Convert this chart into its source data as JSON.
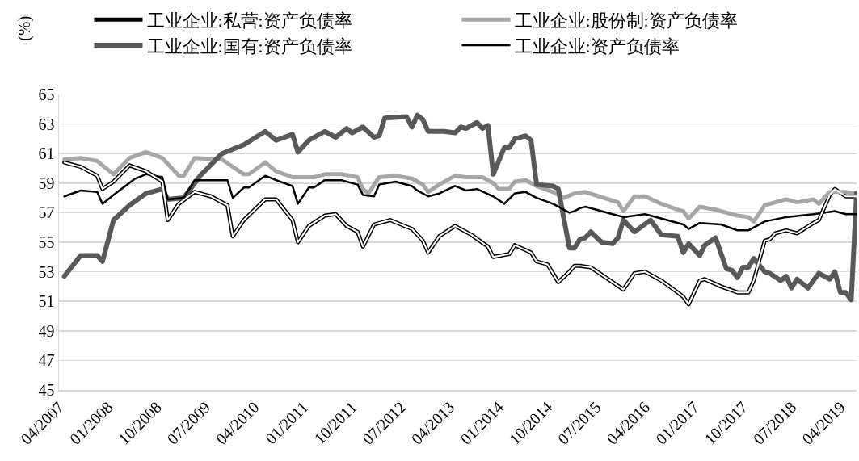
{
  "chart_data": {
    "type": "line",
    "ylabel": "(%)",
    "legend": "top",
    "grid": "y",
    "line_style": "solid",
    "marker": "none",
    "xlim": [
      "2007-04",
      "2019-07"
    ],
    "ylim": [
      45,
      65
    ],
    "yticks": [
      45,
      47,
      49,
      51,
      53,
      55,
      57,
      59,
      61,
      63,
      65
    ],
    "xticks": [
      {
        "value": "2007-04",
        "label": "04/2007"
      },
      {
        "value": "2008-01",
        "label": "01/2008"
      },
      {
        "value": "2008-10",
        "label": "10/2008"
      },
      {
        "value": "2009-07",
        "label": "07/2009"
      },
      {
        "value": "2010-04",
        "label": "04/2010"
      },
      {
        "value": "2011-01",
        "label": "01/2011"
      },
      {
        "value": "2011-10",
        "label": "10/2011"
      },
      {
        "value": "2012-07",
        "label": "07/2012"
      },
      {
        "value": "2013-04",
        "label": "04/2013"
      },
      {
        "value": "2014-01",
        "label": "01/2014"
      },
      {
        "value": "2014-10",
        "label": "10/2014"
      },
      {
        "value": "2015-07",
        "label": "07/2015"
      },
      {
        "value": "2016-04",
        "label": "04/2016"
      },
      {
        "value": "2017-01",
        "label": "01/2017"
      },
      {
        "value": "2017-10",
        "label": "10/2017"
      },
      {
        "value": "2018-07",
        "label": "07/2018"
      },
      {
        "value": "2019-04",
        "label": "04/2019"
      }
    ],
    "series": [
      {
        "name": "工业企业:私营:资产负债率",
        "color": "#000000",
        "x": [
          "2007-05",
          "2007-08",
          "2007-11",
          "2007-12",
          "2008-02",
          "2008-05",
          "2008-08",
          "2008-11",
          "2008-12",
          "2009-02",
          "2009-05",
          "2009-08",
          "2009-11",
          "2009-12",
          "2010-02",
          "2010-06",
          "2010-08",
          "2010-11",
          "2010-12",
          "2011-02",
          "2011-05",
          "2011-07",
          "2011-09",
          "2011-11",
          "2011-12",
          "2012-02",
          "2012-05",
          "2012-09",
          "2012-11",
          "2012-12",
          "2013-02",
          "2013-05",
          "2013-08",
          "2013-11",
          "2013-12",
          "2014-03",
          "2014-04",
          "2014-07",
          "2014-08",
          "2014-10",
          "2014-12",
          "2015-02",
          "2015-03",
          "2015-04",
          "2015-06",
          "2015-12",
          "2016-02",
          "2016-04",
          "2016-07",
          "2016-10",
          "2016-11",
          "2016-12",
          "2017-02",
          "2017-03",
          "2017-06",
          "2017-09",
          "2017-11",
          "2017-12",
          "2018-02",
          "2018-03",
          "2018-04",
          "2018-06",
          "2018-08",
          "2018-11",
          "2018-12",
          "2019-02",
          "2019-03",
          "2019-05",
          "2019-07"
        ],
        "values": [
          60.4,
          60.1,
          59.5,
          58.6,
          59.1,
          60.2,
          59.8,
          59.1,
          56.5,
          57.6,
          58.4,
          58.1,
          57.5,
          55.4,
          56.5,
          57.9,
          57.9,
          56.5,
          55.0,
          56.1,
          56.8,
          56.9,
          56.1,
          55.7,
          54.7,
          56.2,
          56.5,
          55.9,
          55.1,
          54.3,
          55.4,
          56.1,
          55.5,
          54.7,
          54.0,
          54.2,
          54.8,
          54.3,
          53.7,
          53.5,
          52.3,
          53.0,
          53.4,
          53.4,
          53.3,
          51.8,
          52.9,
          53.0,
          52.4,
          51.6,
          51.3,
          50.8,
          52.4,
          52.5,
          52.0,
          51.6,
          51.6,
          52.4,
          55.1,
          55.2,
          55.6,
          55.8,
          55.6,
          56.3,
          56.5,
          58.2,
          58.6,
          58.1,
          58.1
        ]
      },
      {
        "name": "工业企业:股份制:资产负债率",
        "color": "#a6a6a6",
        "x": [
          "2007-05",
          "2007-08",
          "2007-11",
          "2008-02",
          "2008-05",
          "2008-08",
          "2008-11",
          "2009-02",
          "2009-03",
          "2009-05",
          "2009-10",
          "2010-02",
          "2010-03",
          "2010-06",
          "2010-08",
          "2010-11",
          "2011-03",
          "2011-05",
          "2011-08",
          "2011-11",
          "2011-12",
          "2012-01",
          "2012-03",
          "2012-06",
          "2012-09",
          "2012-11",
          "2012-12",
          "2013-02",
          "2013-05",
          "2013-07",
          "2013-10",
          "2013-12",
          "2014-01",
          "2014-03",
          "2014-04",
          "2014-06",
          "2014-08",
          "2014-11",
          "2015-01",
          "2015-03",
          "2015-05",
          "2015-11",
          "2015-12",
          "2016-02",
          "2016-04",
          "2016-07",
          "2016-10",
          "2016-11",
          "2016-12",
          "2017-02",
          "2017-05",
          "2017-09",
          "2017-11",
          "2017-12",
          "2018-02",
          "2018-06",
          "2018-08",
          "2018-11",
          "2018-12",
          "2019-02",
          "2019-05",
          "2019-07"
        ],
        "values": [
          60.6,
          60.7,
          60.5,
          59.6,
          60.7,
          61.1,
          60.7,
          59.5,
          59.5,
          60.7,
          60.6,
          59.6,
          59.6,
          60.4,
          59.8,
          59.4,
          59.4,
          59.6,
          59.6,
          59.4,
          58.6,
          58.3,
          59.4,
          59.5,
          59.3,
          58.9,
          58.4,
          58.9,
          59.5,
          59.4,
          59.4,
          59.0,
          58.6,
          58.6,
          59.1,
          59.2,
          58.8,
          58.4,
          58.0,
          58.3,
          58.4,
          57.7,
          57.1,
          58.1,
          58.1,
          57.6,
          57.2,
          57.1,
          56.6,
          57.4,
          57.2,
          56.8,
          56.7,
          56.4,
          57.5,
          57.9,
          57.7,
          57.9,
          57.6,
          58.4,
          58.4,
          58.3
        ]
      },
      {
        "name": "工业企业:国有:资产负债率",
        "color": "#595959",
        "x": [
          "2007-05",
          "2007-08",
          "2007-11",
          "2007-12",
          "2008-02",
          "2008-05",
          "2008-08",
          "2008-11",
          "2008-12",
          "2009-03",
          "2009-06",
          "2009-10",
          "2010-02",
          "2010-06",
          "2010-08",
          "2010-11",
          "2010-12",
          "2011-02",
          "2011-05",
          "2011-07",
          "2011-09",
          "2011-10",
          "2011-12",
          "2012-02",
          "2012-03",
          "2012-04",
          "2012-08",
          "2012-09",
          "2012-10",
          "2012-11",
          "2012-12",
          "2013-03",
          "2013-05",
          "2013-06",
          "2013-07",
          "2013-09",
          "2013-10",
          "2013-11",
          "2013-12",
          "2014-02",
          "2014-03",
          "2014-04",
          "2014-06",
          "2014-07",
          "2014-08",
          "2014-11",
          "2014-12",
          "2015-02",
          "2015-03",
          "2015-04",
          "2015-05",
          "2015-06",
          "2015-08",
          "2015-10",
          "2015-11",
          "2015-12",
          "2016-02",
          "2016-05",
          "2016-07",
          "2016-10",
          "2016-11",
          "2016-12",
          "2017-02",
          "2017-03",
          "2017-05",
          "2017-07",
          "2017-08",
          "2017-09",
          "2017-10",
          "2017-11",
          "2017-12",
          "2018-02",
          "2018-03",
          "2018-05",
          "2018-06",
          "2018-07",
          "2018-08",
          "2018-10",
          "2018-12",
          "2019-02",
          "2019-03",
          "2019-04",
          "2019-05",
          "2019-06",
          "2019-07"
        ],
        "values": [
          52.7,
          54.1,
          54.1,
          53.7,
          56.5,
          57.5,
          58.3,
          58.6,
          57.9,
          58.0,
          59.5,
          61.0,
          61.6,
          62.5,
          61.9,
          62.3,
          61.1,
          61.9,
          62.5,
          62.1,
          62.7,
          62.4,
          62.8,
          62.1,
          62.2,
          63.4,
          63.5,
          62.8,
          63.6,
          63.3,
          62.5,
          62.5,
          62.4,
          62.8,
          62.7,
          63.1,
          62.7,
          62.9,
          59.6,
          61.4,
          61.4,
          62.0,
          62.2,
          61.9,
          58.9,
          58.8,
          58.6,
          54.6,
          54.6,
          55.2,
          55.3,
          55.7,
          55.0,
          54.9,
          55.3,
          56.5,
          55.7,
          56.5,
          55.5,
          55.4,
          54.3,
          54.9,
          54.1,
          54.8,
          55.3,
          53.2,
          53.1,
          52.6,
          53.3,
          53.3,
          53.9,
          53.0,
          52.9,
          52.4,
          52.7,
          51.9,
          52.5,
          51.9,
          52.9,
          52.5,
          53.0,
          51.6,
          51.6,
          51.1,
          58.3
        ]
      },
      {
        "name": "工业企业:资产负债率",
        "color": "#000000",
        "x": [
          "2007-05",
          "2007-08",
          "2007-11",
          "2007-12",
          "2008-02",
          "2008-06",
          "2008-08",
          "2008-11",
          "2008-12",
          "2009-03",
          "2009-05",
          "2009-11",
          "2009-12",
          "2010-02",
          "2010-03",
          "2010-06",
          "2010-08",
          "2010-11",
          "2010-12",
          "2011-02",
          "2011-03",
          "2011-05",
          "2011-08",
          "2011-11",
          "2011-12",
          "2012-02",
          "2012-03",
          "2012-06",
          "2012-09",
          "2012-10",
          "2012-12",
          "2013-02",
          "2013-05",
          "2013-07",
          "2013-09",
          "2013-12",
          "2014-02",
          "2014-04",
          "2014-06",
          "2014-08",
          "2014-11",
          "2015-02",
          "2015-03",
          "2015-04",
          "2015-05",
          "2015-10",
          "2015-12",
          "2016-04",
          "2016-08",
          "2016-11",
          "2016-12",
          "2017-02",
          "2017-06",
          "2017-09",
          "2017-11",
          "2018-02",
          "2018-06",
          "2018-11",
          "2019-03",
          "2019-05",
          "2019-07"
        ],
        "values": [
          58.1,
          58.5,
          58.4,
          57.6,
          58.2,
          59.3,
          59.6,
          59.4,
          57.9,
          58.0,
          59.2,
          59.2,
          58.0,
          58.7,
          58.7,
          59.5,
          59.2,
          58.8,
          57.6,
          58.7,
          58.7,
          59.2,
          59.2,
          58.9,
          58.2,
          58.1,
          58.9,
          59.1,
          58.8,
          58.5,
          58.1,
          58.3,
          58.8,
          58.5,
          58.6,
          58.1,
          57.6,
          58.3,
          58.4,
          58.0,
          57.6,
          57.0,
          57.1,
          57.3,
          57.4,
          56.9,
          56.7,
          56.9,
          56.5,
          56.2,
          55.9,
          56.3,
          56.2,
          55.8,
          55.8,
          56.4,
          56.7,
          56.9,
          57.1,
          56.9,
          56.9
        ]
      }
    ]
  }
}
